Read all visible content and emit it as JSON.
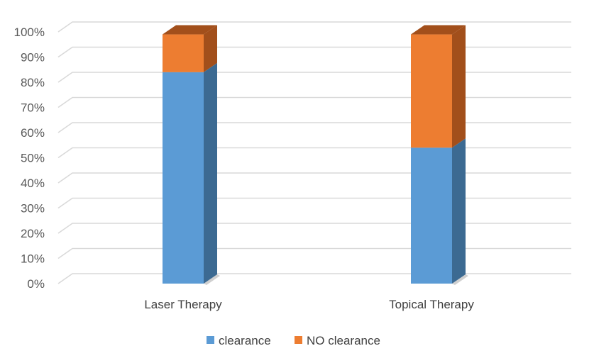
{
  "chart_data": {
    "type": "bar",
    "stacked": true,
    "percent_stacked": true,
    "style_3d": true,
    "categories": [
      "Laser Therapy",
      "Topical Therapy"
    ],
    "series": [
      {
        "name": "clearance",
        "values": [
          84,
          54
        ],
        "color": "#5B9BD5",
        "side_color": "#3C6A92"
      },
      {
        "name": "NO clearance",
        "values": [
          15,
          45
        ],
        "color": "#ED7D31",
        "side_color": "#A24F1B"
      }
    ],
    "ylim": [
      0,
      100
    ],
    "y_ticks": [
      "0%",
      "10%",
      "20%",
      "30%",
      "40%",
      "50%",
      "60%",
      "70%",
      "80%",
      "90%",
      "100%"
    ],
    "y_tick_values": [
      0,
      10,
      20,
      30,
      40,
      50,
      60,
      70,
      80,
      90,
      100
    ],
    "grid": true,
    "legend_position": "bottom",
    "title": "",
    "xlabel": "",
    "ylabel": ""
  }
}
